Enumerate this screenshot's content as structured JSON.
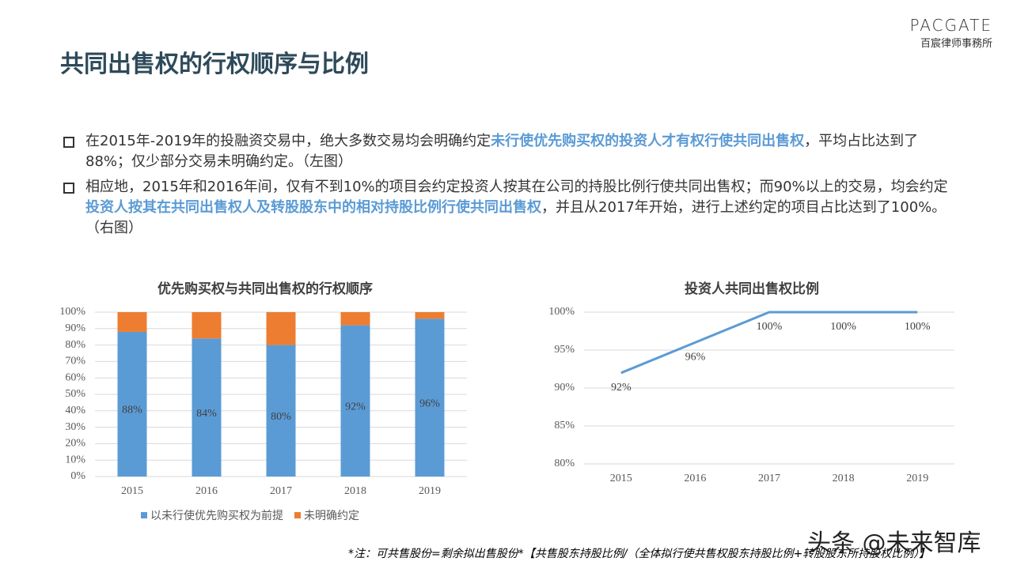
{
  "logo": {
    "name": "PACGATE",
    "subtitle": "百宸律师事務所"
  },
  "title": "共同出售权的行权顺序与比例",
  "bullets": [
    [
      "在2015年-2019年的投融资交易中，绝大多数交易均会明确约定",
      "未行使优先购买权的投资人才有权行使共同出售权",
      "，平均占比达到了88%；仅少部分交易未明确约定。（左图）"
    ],
    [
      "相应地，2015年和2016年间，仅有不到10%的项目会约定投资人按其在公司的持股比例行使共同出售权；而90%以上的交易，均会约定",
      "投资人按其在共同出售权人及转股股东中的相对持股比例行使共同出售权",
      "，并且从2017年开始，进行上述约定的项目占比达到了100%。（右图）"
    ]
  ],
  "chart_data": [
    {
      "type": "stacked_bar",
      "title": "优先购买权与共同出售权的行权顺序",
      "categories": [
        "2015",
        "2016",
        "2017",
        "2018",
        "2019"
      ],
      "series": [
        {
          "name": "以未行使优先购买权为前提",
          "color": "#5b9bd5",
          "values": [
            88,
            84,
            80,
            92,
            96
          ],
          "value_labels": [
            "88%",
            "84%",
            "80%",
            "92%",
            "96%"
          ]
        },
        {
          "name": "未明确约定",
          "color": "#ed7d31",
          "values": [
            12,
            16,
            20,
            8,
            4
          ]
        }
      ],
      "ylim": [
        0,
        100
      ],
      "yticks": [
        {
          "value": 0,
          "label": "0%"
        },
        {
          "value": 10,
          "label": "10%"
        },
        {
          "value": 20,
          "label": "20%"
        },
        {
          "value": 30,
          "label": "30%"
        },
        {
          "value": 40,
          "label": "40%"
        },
        {
          "value": 50,
          "label": "50%"
        },
        {
          "value": 60,
          "label": "60%"
        },
        {
          "value": 70,
          "label": "70%"
        },
        {
          "value": 80,
          "label": "80%"
        },
        {
          "value": 90,
          "label": "90%"
        },
        {
          "value": 100,
          "label": "100%"
        }
      ],
      "legend": "bottom"
    },
    {
      "type": "line",
      "title": "投资人共同出售权比例",
      "categories": [
        "2015",
        "2016",
        "2017",
        "2018",
        "2019"
      ],
      "values": [
        92,
        96,
        100,
        100,
        100
      ],
      "value_labels": [
        "92%",
        "96%",
        "100%",
        "100%",
        "100%"
      ],
      "color": "#5b9bd5",
      "ylim": [
        80,
        100
      ],
      "yticks": [
        {
          "value": 80,
          "label": "80%"
        },
        {
          "value": 85,
          "label": "85%"
        },
        {
          "value": 90,
          "label": "90%"
        },
        {
          "value": 95,
          "label": "95%"
        },
        {
          "value": 100,
          "label": "100%"
        }
      ]
    }
  ],
  "footnote": "*注：可共售股份=剩余拟出售股份*【共售股东持股比例/（全体拟行使共售权股东持股比例+转股股东所持股权比例）】",
  "watermark": "头条 @未来智库"
}
